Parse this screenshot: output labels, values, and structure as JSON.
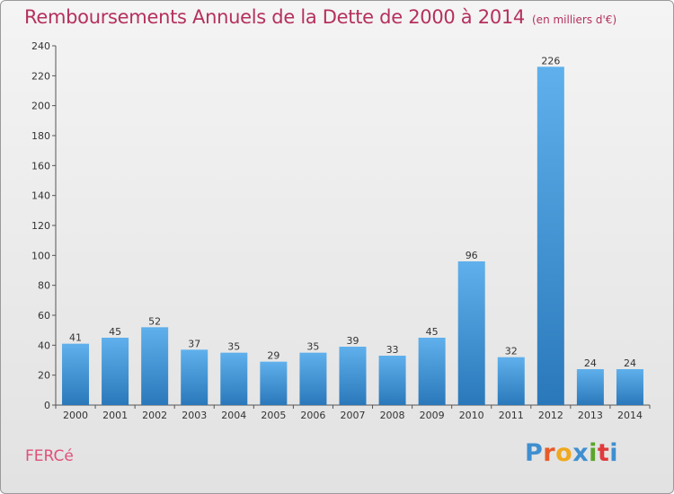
{
  "header": {
    "title": "Remboursements Annuels de la Dette de 2000 à 2014",
    "subtitle": "(en milliers d'€)"
  },
  "footer": {
    "commune": "FERCé",
    "logo_text": "Proxiti"
  },
  "colors": {
    "title": "#b5305f",
    "bar_light": "#5fb0ec",
    "bar_dark": "#2a78ba",
    "logo": [
      "#3f8fd0",
      "#e85a28",
      "#f0a81e",
      "#3f8fd0",
      "#5aa52c",
      "#e03b3b",
      "#3f8fd0"
    ]
  },
  "chart_data": {
    "type": "bar",
    "title": "Remboursements Annuels de la Dette de 2000 à 2014",
    "xlabel": "",
    "ylabel": "",
    "categories": [
      "2000",
      "2001",
      "2002",
      "2003",
      "2004",
      "2005",
      "2006",
      "2007",
      "2008",
      "2009",
      "2010",
      "2011",
      "2012",
      "2013",
      "2014"
    ],
    "values": [
      41,
      45,
      52,
      37,
      35,
      29,
      35,
      39,
      33,
      45,
      96,
      32,
      226,
      24,
      24
    ],
    "ylim": [
      0,
      240
    ],
    "yticks": [
      0,
      20,
      40,
      60,
      80,
      100,
      120,
      140,
      160,
      180,
      200,
      220,
      240
    ],
    "grid": false,
    "legend": "none"
  }
}
